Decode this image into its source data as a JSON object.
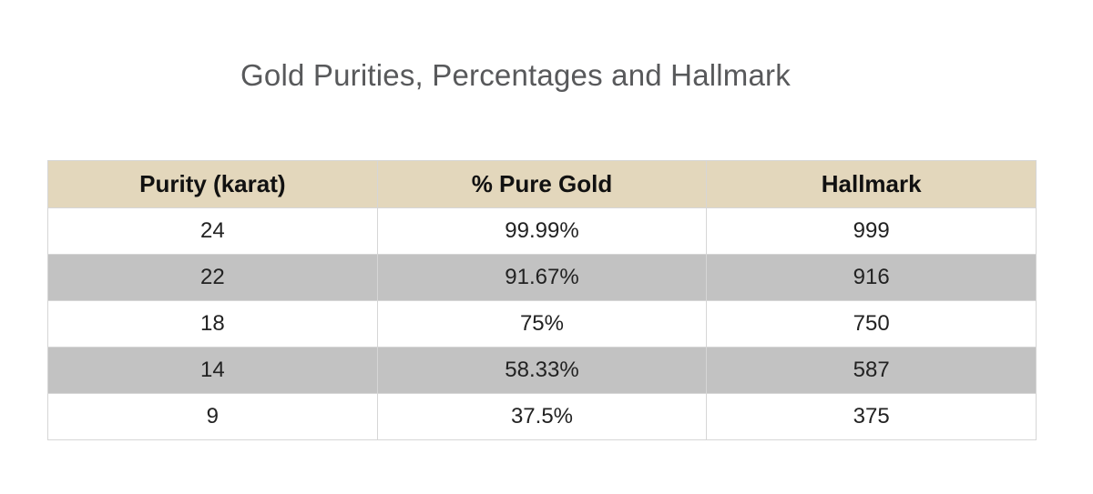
{
  "title": "Gold Purities, Percentages and Hallmark",
  "table": {
    "headers": [
      "Purity (karat)",
      "% Pure Gold",
      "Hallmark"
    ],
    "rows": [
      [
        "24",
        "99.99%",
        "999"
      ],
      [
        "22",
        "91.67%",
        "916"
      ],
      [
        "18",
        "75%",
        "750"
      ],
      [
        "14",
        "58.33%",
        "587"
      ],
      [
        "9",
        "37.5%",
        "375"
      ]
    ]
  },
  "colors": {
    "header_background": "#e3d7bc",
    "striped_row_background": "#c2c2c2",
    "title_text": "#58595b"
  }
}
